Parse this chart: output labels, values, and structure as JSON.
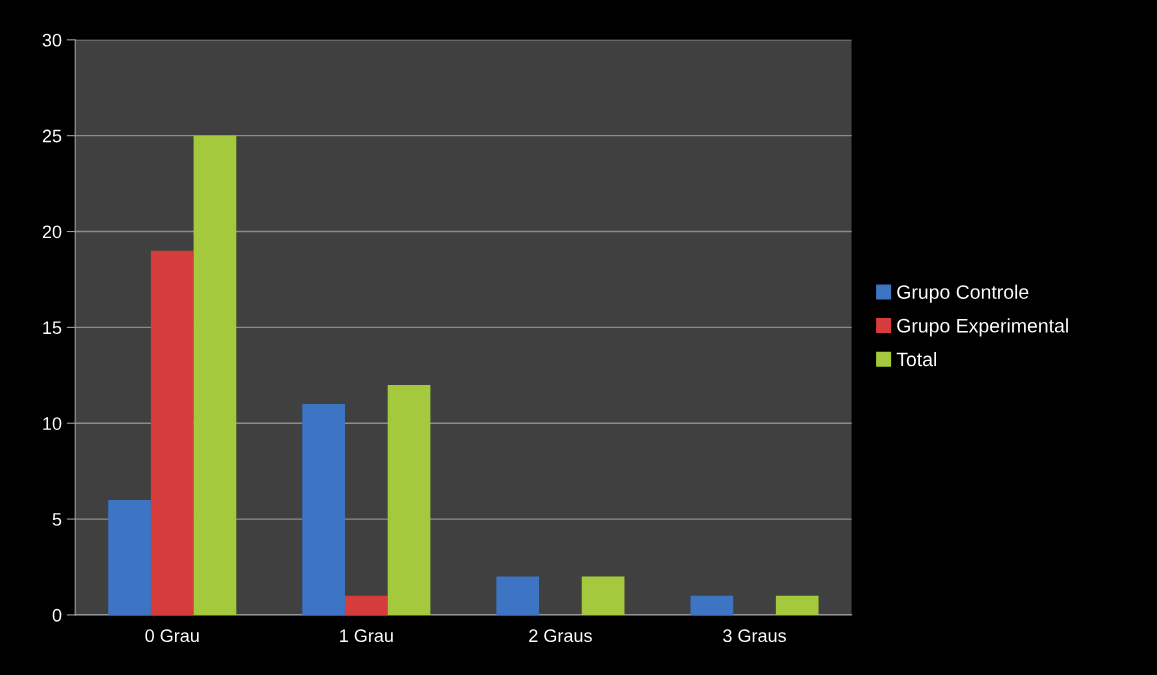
{
  "chart_data": {
    "type": "bar",
    "categories": [
      "0 Grau",
      "1 Grau",
      "2 Graus",
      "3 Graus"
    ],
    "series": [
      {
        "name": "Grupo Controle",
        "color": "#3d74c4",
        "values": [
          6,
          11,
          2,
          1
        ]
      },
      {
        "name": "Grupo Experimental",
        "color": "#d63c3c",
        "values": [
          19,
          1,
          0,
          0
        ]
      },
      {
        "name": "Total",
        "color": "#a4c93c",
        "values": [
          25,
          12,
          2,
          1
        ]
      }
    ],
    "ylim": [
      0,
      30
    ],
    "yticks": [
      0,
      5,
      10,
      15,
      20,
      25,
      30
    ],
    "grid": "y",
    "legend": "right"
  }
}
